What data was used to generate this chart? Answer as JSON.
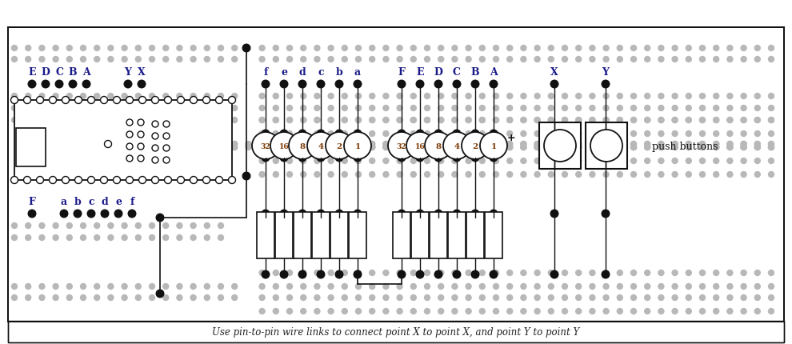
{
  "fig_width": 9.9,
  "fig_height": 4.31,
  "dpi": 100,
  "bg": "#ffffff",
  "dark": "#111111",
  "gray": "#b8b8b8",
  "blue": "#1a1a88",
  "brown": "#7a3800",
  "bottom_text": "Use pin-to-pin wire links to connect point X to point X, and point Y to point Y",
  "res_labels": [
    "32",
    "16",
    "8",
    "4",
    "2",
    "1",
    "32",
    "16",
    "8",
    "4",
    "2",
    "1"
  ],
  "left_top_labels": [
    "E",
    "D",
    "C",
    "B",
    "A",
    "Y",
    "X"
  ],
  "mid_labels": [
    "f",
    "e",
    "d",
    "c",
    "b",
    "a",
    "F",
    "E",
    "D",
    "C",
    "B",
    "A"
  ],
  "right_labels": [
    "X",
    "Y"
  ],
  "bot_labels": [
    "F",
    "a",
    "b",
    "c",
    "d",
    "e",
    "f"
  ],
  "push_label": "push buttons"
}
